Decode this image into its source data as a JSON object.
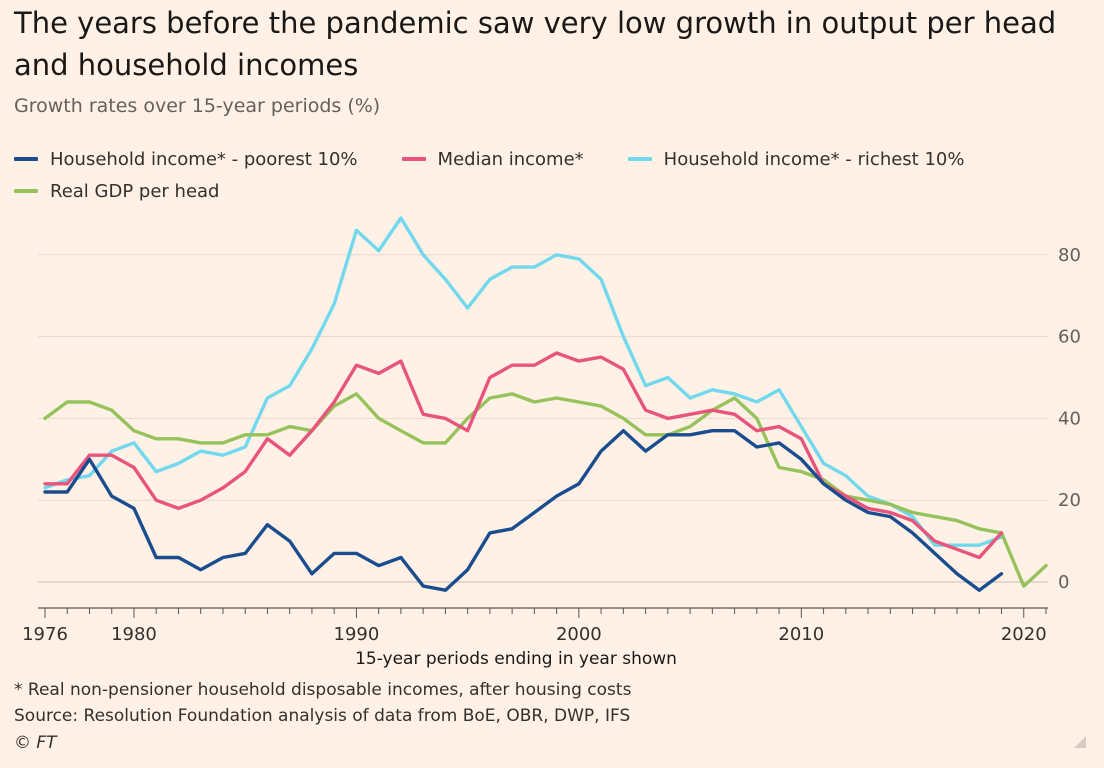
{
  "title": "The years before the pandemic saw very low growth in output per head and household incomes",
  "subtitle": "Growth rates over 15-year periods (%)",
  "footnote": "* Real non-pensioner household disposable incomes, after housing costs",
  "source": "Source: Resolution Foundation analysis of data from BoE, OBR, DWP, IFS",
  "copyright": "© FT",
  "chart_data": {
    "type": "line",
    "title": "The years before the pandemic saw very low growth in output per head and household incomes",
    "subtitle": "Growth rates over 15-year periods (%)",
    "xlabel": "15-year periods ending in year shown",
    "ylabel": "",
    "xlim": [
      1976,
      2021
    ],
    "ylim": [
      -5,
      95
    ],
    "x_ticks": [
      1976,
      1980,
      1990,
      2000,
      2010,
      2020
    ],
    "y_ticks": [
      0,
      20,
      40,
      60,
      80
    ],
    "grid": true,
    "legend_position": "top",
    "series": [
      {
        "name": "Household income* - poorest 10%",
        "color": "#1a4d8f",
        "x": [
          1976,
          1977,
          1978,
          1979,
          1980,
          1981,
          1982,
          1983,
          1984,
          1985,
          1986,
          1987,
          1988,
          1989,
          1990,
          1991,
          1992,
          1993,
          1994,
          1995,
          1996,
          1997,
          1998,
          1999,
          2000,
          2001,
          2002,
          2003,
          2004,
          2005,
          2006,
          2007,
          2008,
          2009,
          2010,
          2011,
          2012,
          2013,
          2014,
          2015,
          2016,
          2017,
          2018,
          2019
        ],
        "values": [
          22,
          22,
          30,
          21,
          18,
          6,
          6,
          3,
          6,
          7,
          14,
          10,
          2,
          7,
          7,
          4,
          6,
          -1,
          -2,
          3,
          12,
          13,
          17,
          21,
          24,
          32,
          37,
          32,
          36,
          36,
          37,
          37,
          33,
          34,
          30,
          24,
          20,
          17,
          16,
          12,
          7,
          2,
          -2,
          2
        ]
      },
      {
        "name": "Median income*",
        "color": "#e8557c",
        "x": [
          1976,
          1977,
          1978,
          1979,
          1980,
          1981,
          1982,
          1983,
          1984,
          1985,
          1986,
          1987,
          1988,
          1989,
          1990,
          1991,
          1992,
          1993,
          1994,
          1995,
          1996,
          1997,
          1998,
          1999,
          2000,
          2001,
          2002,
          2003,
          2004,
          2005,
          2006,
          2007,
          2008,
          2009,
          2010,
          2011,
          2012,
          2013,
          2014,
          2015,
          2016,
          2017,
          2018,
          2019
        ],
        "values": [
          24,
          24,
          31,
          31,
          28,
          20,
          18,
          20,
          23,
          27,
          35,
          31,
          37,
          44,
          53,
          51,
          54,
          41,
          40,
          37,
          50,
          53,
          53,
          56,
          54,
          55,
          52,
          42,
          40,
          41,
          42,
          41,
          37,
          38,
          35,
          24,
          21,
          18,
          17,
          15,
          10,
          8,
          6,
          12
        ]
      },
      {
        "name": "Household income* - richest 10%",
        "color": "#72d8ed",
        "x": [
          1976,
          1977,
          1978,
          1979,
          1980,
          1981,
          1982,
          1983,
          1984,
          1985,
          1986,
          1987,
          1988,
          1989,
          1990,
          1991,
          1992,
          1993,
          1994,
          1995,
          1996,
          1997,
          1998,
          1999,
          2000,
          2001,
          2002,
          2003,
          2004,
          2005,
          2006,
          2007,
          2008,
          2009,
          2010,
          2011,
          2012,
          2013,
          2014,
          2015,
          2016,
          2017,
          2018,
          2019
        ],
        "values": [
          23,
          25,
          26,
          32,
          34,
          27,
          29,
          32,
          31,
          33,
          45,
          48,
          57,
          68,
          86,
          81,
          89,
          80,
          74,
          67,
          74,
          77,
          77,
          80,
          79,
          74,
          60,
          48,
          50,
          45,
          47,
          46,
          44,
          47,
          38,
          29,
          26,
          21,
          19,
          16,
          9,
          9,
          9,
          11
        ]
      },
      {
        "name": "Real GDP per head",
        "color": "#96c25b",
        "x": [
          1976,
          1977,
          1978,
          1979,
          1980,
          1981,
          1982,
          1983,
          1984,
          1985,
          1986,
          1987,
          1988,
          1989,
          1990,
          1991,
          1992,
          1993,
          1994,
          1995,
          1996,
          1997,
          1998,
          1999,
          2000,
          2001,
          2002,
          2003,
          2004,
          2005,
          2006,
          2007,
          2008,
          2009,
          2010,
          2011,
          2012,
          2013,
          2014,
          2015,
          2016,
          2017,
          2018,
          2019,
          2020,
          2021
        ],
        "values": [
          40,
          44,
          44,
          42,
          37,
          35,
          35,
          34,
          34,
          36,
          36,
          38,
          37,
          43,
          46,
          40,
          37,
          34,
          34,
          40,
          45,
          46,
          44,
          45,
          44,
          43,
          40,
          36,
          36,
          38,
          42,
          45,
          40,
          28,
          27,
          25,
          21,
          20,
          19,
          17,
          16,
          15,
          13,
          12,
          -1,
          4
        ]
      }
    ]
  }
}
